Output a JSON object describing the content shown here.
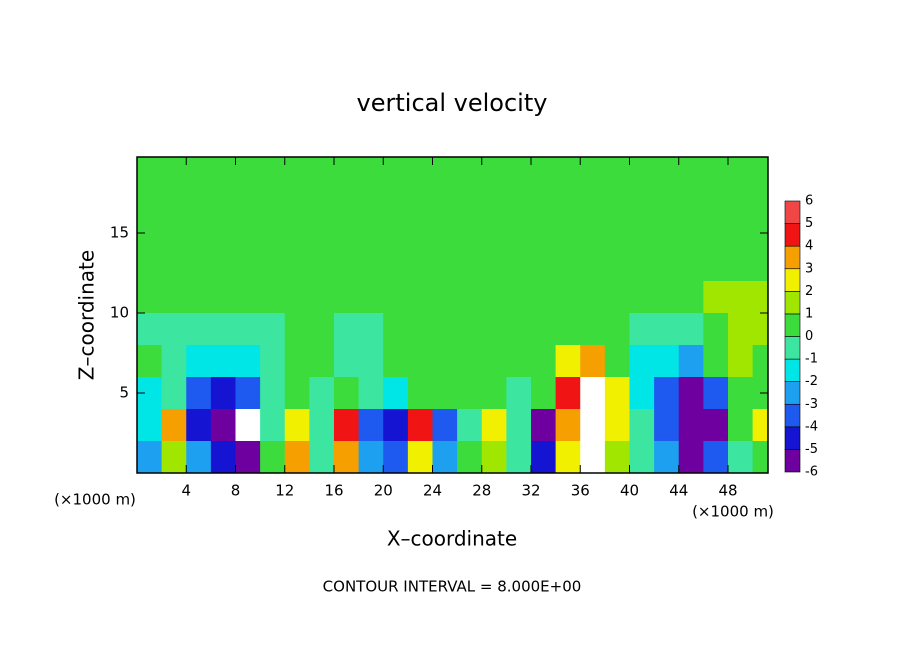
{
  "chart_data": {
    "type": "heatmap",
    "title": "vertical velocity",
    "x_label": "X–coordinate",
    "y_label": "Z–coordinate",
    "x_unit_labels": [
      "(×1000 m)",
      "(×1000 m)"
    ],
    "footer": "CONTOUR INTERVAL = 8.000E+00",
    "x": [
      1,
      3,
      5,
      7,
      9,
      11,
      13,
      15,
      17,
      19,
      21,
      23,
      25,
      27,
      29,
      31,
      33,
      35,
      37,
      39,
      41,
      43,
      45,
      47,
      49,
      51
    ],
    "y": [
      19,
      17,
      15,
      13,
      11,
      9,
      7,
      5,
      3,
      1
    ],
    "z": [
      [
        0.5,
        0.5,
        0.5,
        0.5,
        0.3,
        0.5,
        0.5,
        0.5,
        0.5,
        0.5,
        0.5,
        0.5,
        0.5,
        0.5,
        0.5,
        0.5,
        0.5,
        0.5,
        0.5,
        0.5,
        0.5,
        0.5,
        0.5,
        0.5,
        0.5,
        0.5
      ],
      [
        0.5,
        0.5,
        0.5,
        0.5,
        0.5,
        0.5,
        0.5,
        0.5,
        0.5,
        0.5,
        0.5,
        0.5,
        0.5,
        0.5,
        0.5,
        0.5,
        0.5,
        0.5,
        0.5,
        0.5,
        0.5,
        0.5,
        0.5,
        0.5,
        0.5,
        0.5
      ],
      [
        0.5,
        0.5,
        0.5,
        0.5,
        0.5,
        0.5,
        0.5,
        0.5,
        0.5,
        0.5,
        0.5,
        0.5,
        0.8,
        0.8,
        0.5,
        0.5,
        0.5,
        0.5,
        0.5,
        0.5,
        0.5,
        0.5,
        0.5,
        0.5,
        0.5,
        0.5
      ],
      [
        0.5,
        0.5,
        0.5,
        0.5,
        0.5,
        0.5,
        0.5,
        0.5,
        0.5,
        0.5,
        0.5,
        0.5,
        0.5,
        0.5,
        0.5,
        0.5,
        0.5,
        0.5,
        0.5,
        0.5,
        0.5,
        0.5,
        0.5,
        0.5,
        0.8,
        0.8
      ],
      [
        0.3,
        0.3,
        0.3,
        0.3,
        0.3,
        0.3,
        0.3,
        0.3,
        0.3,
        0.3,
        0.3,
        0.3,
        0.3,
        0.3,
        0.3,
        0.3,
        0.3,
        0.3,
        0.3,
        0.3,
        0.3,
        0.3,
        0.3,
        1.5,
        1.5,
        1.5
      ],
      [
        0,
        0,
        -0.8,
        -0.8,
        -0.8,
        0,
        0.3,
        0.3,
        0,
        -0.5,
        0.3,
        0.3,
        0.3,
        0.3,
        0.3,
        0.3,
        0.3,
        0.3,
        0.3,
        0.3,
        0,
        -0.5,
        0,
        0.5,
        1.5,
        1.5
      ],
      [
        0.3,
        -0.5,
        -1.5,
        -1.5,
        -1,
        0,
        0.5,
        0.5,
        -0.8,
        -0.5,
        0.3,
        0.5,
        0.5,
        0.3,
        0.5,
        0.3,
        1,
        3,
        3.5,
        1,
        -1,
        -1.5,
        -2,
        0.5,
        1.5,
        1
      ],
      [
        -1,
        -0.5,
        -3,
        -4,
        -3,
        0,
        0.5,
        0,
        1,
        0,
        -1,
        0.5,
        0.5,
        1,
        0.5,
        -0.5,
        1,
        5,
        6.5,
        3,
        -1,
        -3,
        -5,
        -3,
        1,
        1
      ],
      [
        -1,
        4,
        -4,
        -5,
        6.5,
        0,
        3,
        0,
        5,
        -3,
        -4,
        5,
        -3,
        0,
        3,
        0,
        -5,
        4,
        7,
        3,
        0,
        -3,
        -6,
        -5,
        1,
        3
      ],
      [
        -2,
        2,
        -2,
        -4,
        -5,
        1,
        4,
        0,
        4,
        -2,
        -3,
        3,
        -2,
        0.5,
        2,
        0,
        -4,
        3,
        6.5,
        2,
        0,
        -2,
        -5,
        -3,
        0,
        1
      ]
    ],
    "xlim": [
      0,
      51.25
    ],
    "ylim": [
      0,
      19.75
    ],
    "xticks": [
      4,
      8,
      12,
      16,
      20,
      24,
      28,
      32,
      36,
      40,
      44,
      48
    ],
    "yticks": [
      5,
      10,
      15
    ],
    "colorbar": {
      "levels": [
        -6,
        -5,
        -4,
        -3,
        -2,
        -1,
        0,
        1,
        2,
        3,
        4,
        5,
        6
      ],
      "colors": [
        "#6e00a0",
        "#1414d2",
        "#1e5af0",
        "#1ea0f0",
        "#00e6e6",
        "#3ce6a0",
        "#3cdc3c",
        "#a0e600",
        "#f0f000",
        "#f5a000",
        "#f01414",
        "#f04646",
        "#f5a0a0"
      ],
      "out_of_range_color": "#ffffff"
    }
  }
}
